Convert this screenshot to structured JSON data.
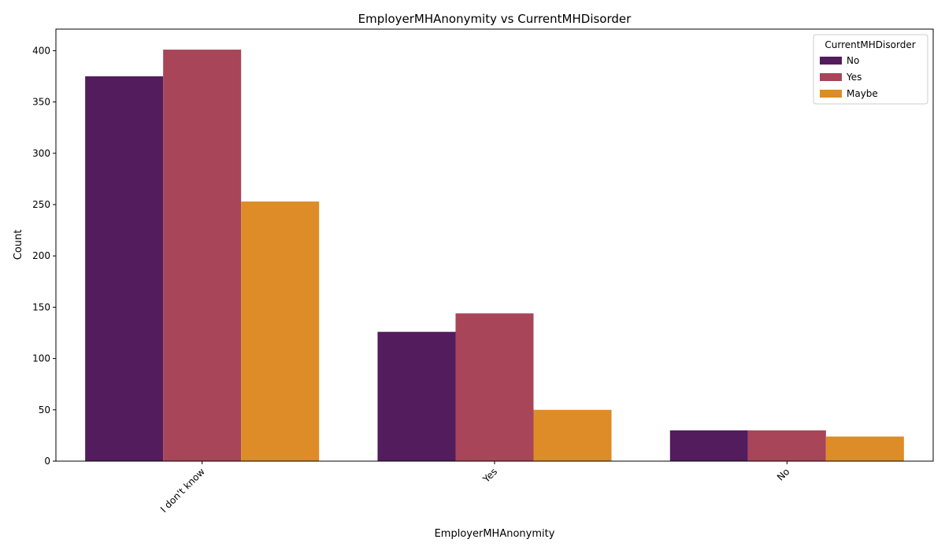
{
  "chart_data": {
    "type": "bar",
    "title": "EmployerMHAnonymity vs CurrentMHDisorder",
    "xlabel": "EmployerMHAnonymity",
    "ylabel": "Count",
    "categories": [
      "I don't know",
      "Yes",
      "No"
    ],
    "series": [
      {
        "name": "No",
        "values": [
          375,
          126,
          30
        ],
        "color": "#531c5d"
      },
      {
        "name": "Yes",
        "values": [
          401,
          144,
          30
        ],
        "color": "#a84558"
      },
      {
        "name": "Maybe",
        "values": [
          253,
          50,
          24
        ],
        "color": "#dd8c28"
      }
    ],
    "ylim": [
      0,
      421
    ],
    "yticks": [
      0,
      50,
      100,
      150,
      200,
      250,
      300,
      350,
      400
    ],
    "grid": false,
    "legend": {
      "title": "CurrentMHDisorder",
      "position": "top-right"
    }
  }
}
